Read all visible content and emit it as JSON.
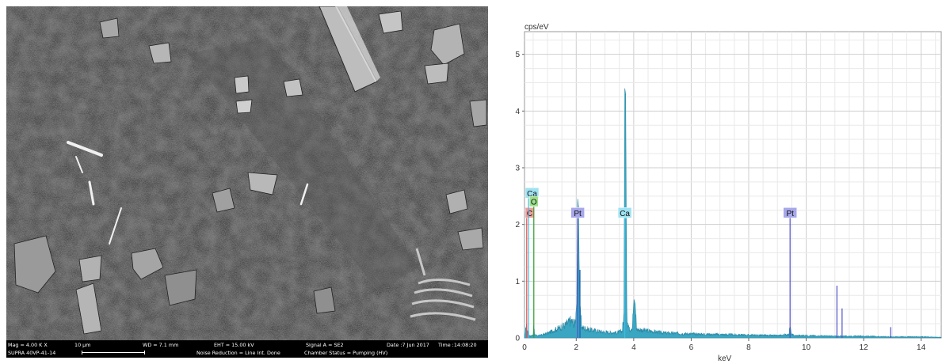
{
  "sem": {
    "icons": [
      "sem-micrograph-texture"
    ],
    "info": {
      "mag": "Mag =   4.00 K X",
      "scale": "10 µm",
      "wd": "WD =   7.1 mm",
      "eht": "EHT = 15.00 kV",
      "signal": "Signal A = SE2",
      "date": "Date :7 Jun 2017",
      "time": "Time :14:08:20",
      "instrument": "SUPRA 40VP-41-14",
      "noise": "Noise Reduction = Line Int. Done",
      "chamber": "Chamber Status = Pumping (HV)"
    }
  },
  "chart_data": {
    "type": "area",
    "title": "",
    "xlabel": "keV",
    "ylabel": "cps/eV",
    "xlim": [
      0.2,
      14.7
    ],
    "ylim": [
      0,
      5.4
    ],
    "xticks": [
      2,
      4,
      6,
      8,
      10,
      12,
      14
    ],
    "yticks": [
      1,
      2,
      3,
      4,
      5
    ],
    "tick_labels": {
      "x0": "0",
      "y0": "0"
    },
    "grid": true,
    "fill_color": "#3aa6c2",
    "spectrum_anchors": [
      [
        0.2,
        0
      ],
      [
        0.27,
        0.25
      ],
      [
        0.32,
        0.06
      ],
      [
        0.4,
        0.03
      ],
      [
        0.5,
        0.05
      ],
      [
        0.52,
        0.25
      ],
      [
        0.55,
        0.05
      ],
      [
        0.7,
        0.04
      ],
      [
        1.0,
        0.08
      ],
      [
        1.3,
        0.15
      ],
      [
        1.6,
        0.22
      ],
      [
        1.8,
        0.3
      ],
      [
        1.95,
        0.25
      ],
      [
        2.02,
        0.6
      ],
      [
        2.05,
        2.45
      ],
      [
        2.08,
        2.3
      ],
      [
        2.12,
        0.5
      ],
      [
        2.2,
        0.18
      ],
      [
        2.5,
        0.14
      ],
      [
        3.0,
        0.1
      ],
      [
        3.4,
        0.09
      ],
      [
        3.6,
        0.12
      ],
      [
        3.66,
        0.4
      ],
      [
        3.69,
        4.4
      ],
      [
        3.72,
        4.3
      ],
      [
        3.76,
        0.4
      ],
      [
        3.85,
        0.15
      ],
      [
        3.95,
        0.2
      ],
      [
        4.01,
        0.68
      ],
      [
        4.05,
        0.6
      ],
      [
        4.1,
        0.15
      ],
      [
        5.0,
        0.09
      ],
      [
        6.0,
        0.07
      ],
      [
        7.0,
        0.06
      ],
      [
        8.0,
        0.05
      ],
      [
        9.0,
        0.04
      ],
      [
        9.4,
        0.06
      ],
      [
        9.44,
        0.2
      ],
      [
        9.48,
        0.06
      ],
      [
        9.6,
        0.04
      ],
      [
        10.0,
        0.04
      ],
      [
        11.0,
        0.03
      ],
      [
        12.0,
        0.03
      ],
      [
        13.0,
        0.02
      ],
      [
        14.0,
        0.02
      ],
      [
        14.7,
        0.01
      ]
    ],
    "markers": [
      {
        "element": "C",
        "energy": 0.277,
        "height": 2.2,
        "line_color": "#e84a4a",
        "box_color": "#f49a9a"
      },
      {
        "element": "Ca",
        "energy": 0.341,
        "height": 2.55,
        "line_color": "#40bde0",
        "box_color": "#9fe2f2"
      },
      {
        "element": "O",
        "energy": 0.525,
        "height": 2.4,
        "line_color": "#2e9e2e",
        "box_color": "#9ee08b"
      },
      {
        "element": "Pt",
        "energy": 2.05,
        "height": 2.2,
        "line_color": "#5050c8",
        "box_color": "#a7a7ea"
      },
      {
        "element": "Ca",
        "energy": 3.69,
        "height": 2.2,
        "line_color": "#40bde0",
        "box_color": "#9fe2f2"
      },
      {
        "element": "Pt",
        "energy": 9.44,
        "height": 2.2,
        "line_color": "#5050c8",
        "box_color": "#a7a7ea"
      }
    ],
    "minor_lines": [
      {
        "energy": 11.07,
        "height": 0.92,
        "color": "#5050c8"
      },
      {
        "energy": 11.25,
        "height": 0.52,
        "color": "#5050c8"
      },
      {
        "energy": 12.94,
        "height": 0.19,
        "color": "#5050c8"
      },
      {
        "energy": 2.13,
        "height": 1.2,
        "color": "#1b5fb0"
      }
    ]
  }
}
